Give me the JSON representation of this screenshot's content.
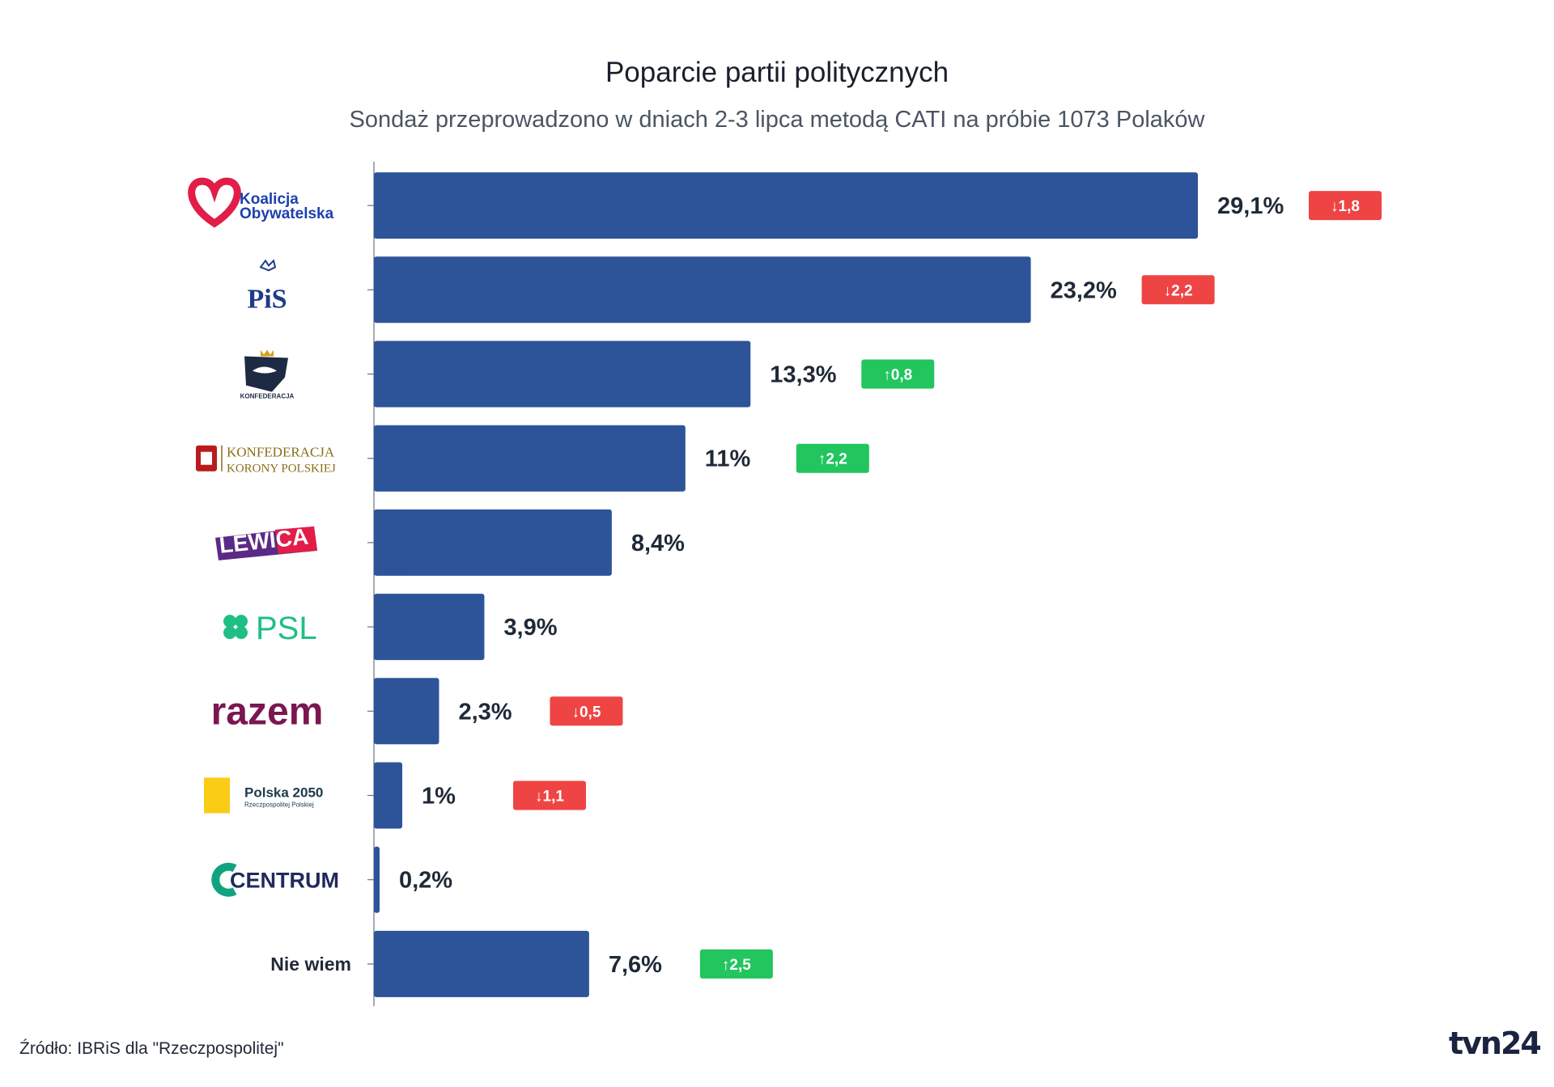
{
  "title": "Poparcie partii politycznych",
  "subtitle": "Sondaż przeprowadzono w dniach 2-3 lipca metodą CATI na próbie 1073 Polaków",
  "source": "Źródło: IBRiS dla \"Rzeczpospolitej\"",
  "brand": "tvn24",
  "colors": {
    "bar": "#2d5399",
    "up": "#22c55e",
    "down": "#ef4444",
    "value_text": "#1f2937"
  },
  "chart_data": {
    "type": "bar",
    "orientation": "horizontal",
    "title": "Poparcie partii politycznych",
    "subtitle": "Sondaż przeprowadzono w dniach 2-3 lipca metodą CATI na próbie 1073 Polaków",
    "xlim": [
      0,
      29.1
    ],
    "categories": [
      {
        "name": "Koalicja Obywatelska",
        "logo_text": [
          "Koalicja",
          "Obywatelska"
        ],
        "logo_icon": "heart-icon",
        "value": 29.1,
        "value_label": "29,1%",
        "change": -1.8,
        "change_label": "↓1,8"
      },
      {
        "name": "PiS",
        "logo_text": [
          "PiS"
        ],
        "logo_icon": "eagle-icon",
        "value": 23.2,
        "value_label": "23,2%",
        "change": -2.2,
        "change_label": "↓2,2"
      },
      {
        "name": "Konfederacja",
        "logo_text": [
          "KONFEDERACJA"
        ],
        "logo_icon": "crowned-eagle-icon",
        "value": 13.3,
        "value_label": "13,3%",
        "change": 0.8,
        "change_label": "↑0,8"
      },
      {
        "name": "Konfederacja Korony Polskiej",
        "logo_text": [
          "KONFEDERACJA",
          "KORONY POLSKIEJ"
        ],
        "logo_icon": "coat-of-arms-icon",
        "value": 11,
        "value_label": "11%",
        "change": 2.2,
        "change_label": "↑2,2"
      },
      {
        "name": "Lewica",
        "logo_text": [
          "LEWICA"
        ],
        "logo_icon": "banner-icon",
        "value": 8.4,
        "value_label": "8,4%",
        "change": null,
        "change_label": ""
      },
      {
        "name": "PSL",
        "logo_text": [
          "PSL"
        ],
        "logo_icon": "clover-icon",
        "value": 3.9,
        "value_label": "3,9%",
        "change": null,
        "change_label": ""
      },
      {
        "name": "Razem",
        "logo_text": [
          "razem"
        ],
        "logo_icon": "",
        "value": 2.3,
        "value_label": "2,3%",
        "change": -0.5,
        "change_label": "↓0,5"
      },
      {
        "name": "Polska 2050",
        "logo_text": [
          "Polska 2050",
          "Rzeczpospolitej Polskiej"
        ],
        "logo_icon": "2050-mark-icon",
        "value": 1,
        "value_label": "1%",
        "change": -1.1,
        "change_label": "↓1,1"
      },
      {
        "name": "Centrum",
        "logo_text": [
          "CENTRUM"
        ],
        "logo_icon": "c-ring-icon",
        "value": 0.2,
        "value_label": "0,2%",
        "change": null,
        "change_label": ""
      },
      {
        "name": "Nie wiem",
        "logo_text": [
          "Nie wiem"
        ],
        "logo_icon": "",
        "value": 7.6,
        "value_label": "7,6%",
        "change": 2.5,
        "change_label": "↑2,5"
      }
    ]
  }
}
